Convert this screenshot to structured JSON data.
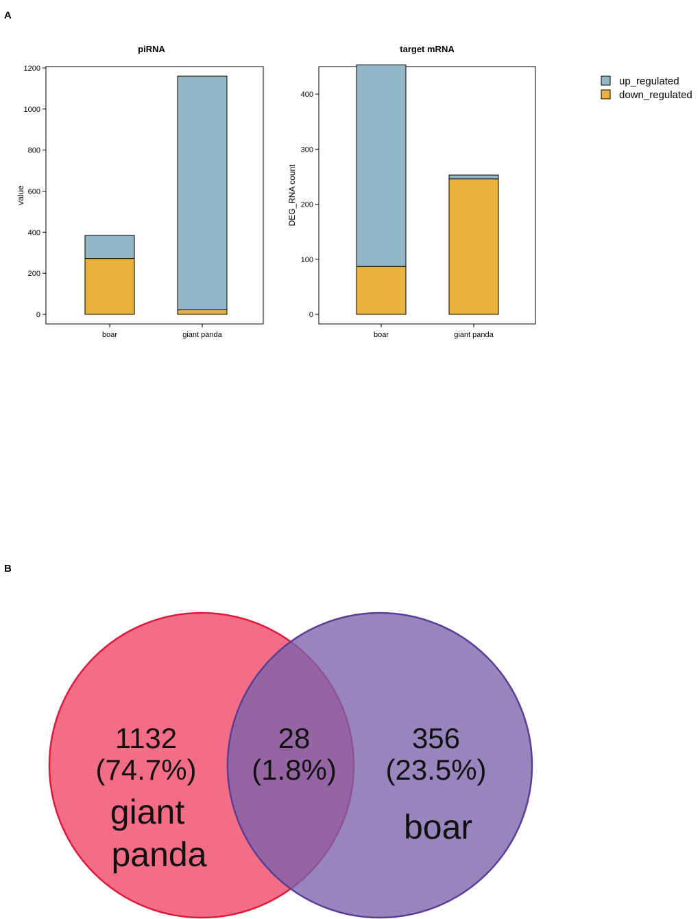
{
  "panels": {
    "a": "A",
    "b": "B"
  },
  "colors": {
    "up_regulated": "#93b7c7",
    "down_regulated": "#e9b23e",
    "frame": "#000000"
  },
  "legend": {
    "items": [
      "up_regulated",
      "down_regulated"
    ]
  },
  "chart_data": [
    {
      "type": "bar",
      "stacked": true,
      "title": "piRNA",
      "xlabel": "",
      "ylabel": "value",
      "categories": [
        "boar",
        "giant panda"
      ],
      "ylim": [
        0,
        1200
      ],
      "yticks": [
        0,
        200,
        400,
        600,
        800,
        1000,
        1200
      ],
      "series": [
        {
          "name": "down_regulated",
          "values": [
            272,
            22
          ]
        },
        {
          "name": "up_regulated",
          "values": [
            112,
            1138
          ]
        }
      ]
    },
    {
      "type": "bar",
      "stacked": true,
      "title": "target mRNA",
      "xlabel": "",
      "ylabel": "DEG_RNA count",
      "categories": [
        "boar",
        "giant panda"
      ],
      "ylim": [
        0,
        450
      ],
      "yticks": [
        0,
        100,
        200,
        300,
        400
      ],
      "series": [
        {
          "name": "down_regulated",
          "values": [
            87,
            246
          ]
        },
        {
          "name": "up_regulated",
          "values": [
            366,
            7
          ]
        }
      ]
    }
  ],
  "venn": {
    "left": {
      "count": "1132",
      "percent": "(74.7%)",
      "name_line1": "giant",
      "name_line2": "panda",
      "fill": "#ef4d6a",
      "stroke": "#e0193c"
    },
    "overlap": {
      "count": "28",
      "percent": "(1.8%)"
    },
    "right": {
      "count": "356",
      "percent": "(23.5%)",
      "name_line1": "boar",
      "fill": "#7b63ac",
      "stroke": "#5a3e95"
    }
  }
}
